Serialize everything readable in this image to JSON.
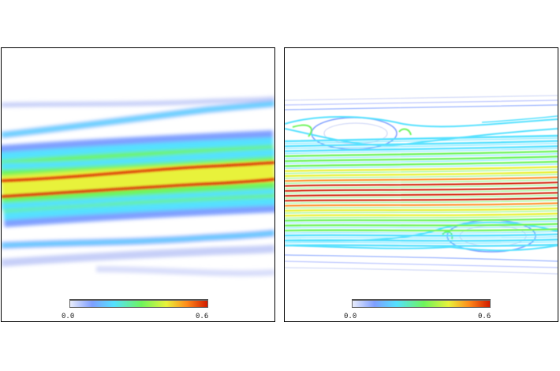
{
  "colors": {
    "background": "#ffffff",
    "colormap": [
      "#e9ecfb",
      "#7f9fff",
      "#54e1ff",
      "#6ef45c",
      "#e8f23a",
      "#ff8a1a",
      "#d21b00"
    ]
  },
  "panels": [
    {
      "id": "left",
      "colorbar": {
        "min_label": "0.0",
        "max_label": "0.6"
      }
    },
    {
      "id": "right",
      "colorbar": {
        "min_label": "0.0",
        "max_label": "0.6"
      }
    }
  ]
}
